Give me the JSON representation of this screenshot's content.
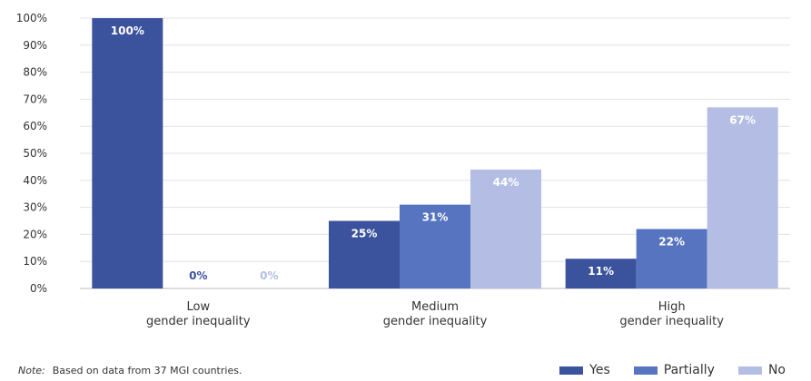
{
  "chart_data": {
    "type": "bar",
    "categories": [
      [
        "Low",
        "gender inequality"
      ],
      [
        "Medium",
        "gender inequality"
      ],
      [
        "High",
        "gender inequality"
      ]
    ],
    "series": [
      {
        "name": "Yes",
        "color": "#3b529c",
        "label_color": "#ffffff",
        "values": [
          100,
          25,
          11
        ],
        "labels": [
          "100%",
          "25%",
          "11%"
        ]
      },
      {
        "name": "Partially",
        "color": "#5674bf",
        "label_color": "#ffffff",
        "values": [
          0,
          31,
          22
        ],
        "labels": [
          "0%",
          "31%",
          "22%"
        ]
      },
      {
        "name": "No",
        "color": "#b4bde3",
        "label_color": "#ffffff",
        "values": [
          0,
          44,
          67
        ],
        "labels": [
          "0%",
          "44%",
          "67%"
        ]
      }
    ],
    "zero_label_colors": [
      "#3b529c",
      "#b4bde3"
    ],
    "yticks": [
      "0%",
      "10%",
      "20%",
      "30%",
      "40%",
      "50%",
      "60%",
      "70%",
      "80%",
      "90%",
      "100%"
    ],
    "ylim": [
      0,
      100
    ],
    "grid": true,
    "legend": "bottom-right",
    "title": "",
    "xlabel": "",
    "ylabel": ""
  },
  "note": {
    "label": "Note:",
    "text": "Based on data from 37 MGI countries."
  }
}
